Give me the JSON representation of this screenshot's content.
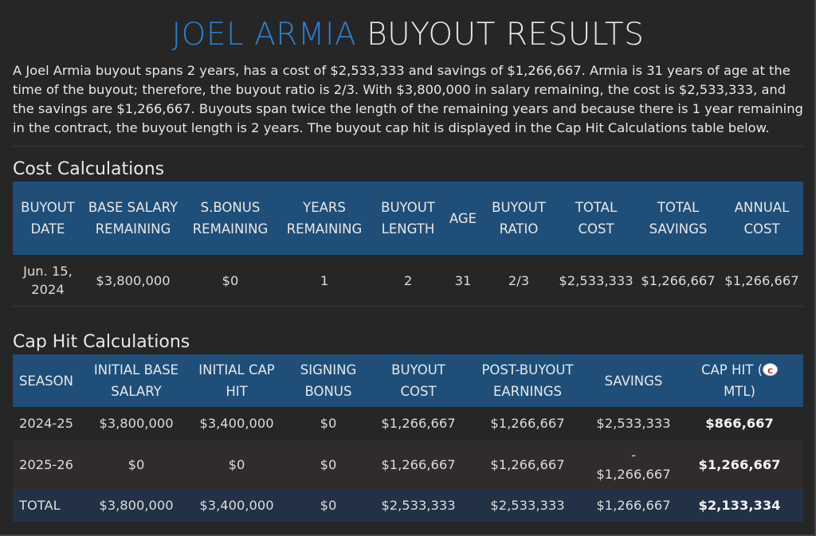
{
  "title": {
    "name": "JOEL ARMIA",
    "rest": "BUYOUT RESULTS"
  },
  "description": "A Joel Armia buyout spans 2 years, has a cost of $2,533,333 and savings of $1,266,667. Armia is 31 years of age at the time of the buyout; therefore, the buyout ratio is 2/3. With $3,800,000 in salary remaining, the cost is $2,533,333, and the savings are $1,266,667. Buyouts span twice the length of the remaining years and because there is 1 year remaining in the contract, the buyout length is 2 years. The buyout cap hit is displayed in the Cap Hit Calculations table below.",
  "cost_calculations": {
    "title": "Cost Calculations",
    "headers": {
      "buyout_date": "BUYOUT DATE",
      "base_salary": "BASE SALARY REMAINING",
      "sbonus": "S.BONUS REMAINING",
      "years": "YEARS REMAINING",
      "length": "BUYOUT LENGTH",
      "age": "AGE",
      "ratio": "BUYOUT RATIO",
      "total_cost": "TOTAL COST",
      "total_savings": "TOTAL SAVINGS",
      "annual_cost": "ANNUAL COST"
    },
    "row": {
      "buyout_date": "Jun. 15, 2024",
      "base_salary": "$3,800,000",
      "sbonus": "$0",
      "years": "1",
      "length": "2",
      "age": "31",
      "ratio": "2/3",
      "total_cost": "$2,533,333",
      "total_savings": "$1,266,667",
      "annual_cost": "$1,266,667"
    }
  },
  "cap_hit_calculations": {
    "title": "Cap Hit Calculations",
    "headers": {
      "season": "SEASON",
      "initial_base": "INITIAL BASE SALARY",
      "initial_cap": "INITIAL CAP HIT",
      "signing_bonus": "SIGNING BONUS",
      "buyout_cost": "BUYOUT COST",
      "post_buyout": "POST-BUYOUT EARNINGS",
      "savings": "SAVINGS",
      "cap_hit_prefix": "CAP HIT (",
      "cap_hit_logo": "C",
      "cap_hit_suffix": "MTL)"
    },
    "rows": [
      {
        "season": "2024-25",
        "initial_base": "$3,800,000",
        "initial_cap": "$3,400,000",
        "signing_bonus": "$0",
        "buyout_cost": "$1,266,667",
        "post_buyout": "$1,266,667",
        "savings": "$2,533,333",
        "cap_hit": "$866,667"
      },
      {
        "season": "2025-26",
        "initial_base": "$0",
        "initial_cap": "$0",
        "signing_bonus": "$0",
        "buyout_cost": "$1,266,667",
        "post_buyout": "$1,266,667",
        "savings_sign": "-",
        "savings": "$1,266,667",
        "cap_hit": "$1,266,667"
      }
    ],
    "total": {
      "season": "TOTAL",
      "initial_base": "$3,800,000",
      "initial_cap": "$3,400,000",
      "signing_bonus": "$0",
      "buyout_cost": "$2,533,333",
      "post_buyout": "$2,533,333",
      "savings": "$1,266,667",
      "cap_hit": "$2,133,334"
    }
  },
  "colors": {
    "background": "#262626",
    "title_accent": "#2f7fd0",
    "header_bg": "#1f4e79",
    "total_row_bg": "#223145"
  },
  "icons": {
    "team_logo": "canadiens-logo-icon"
  }
}
